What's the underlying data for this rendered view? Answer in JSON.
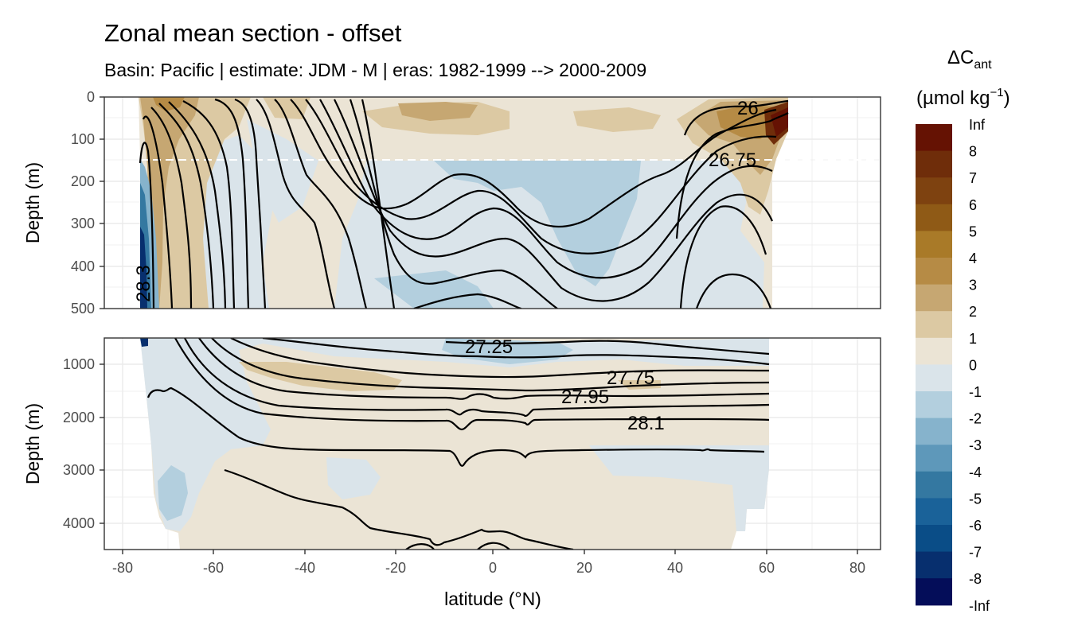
{
  "title": "Zonal mean section - offset",
  "subtitle": "Basin: Pacific | estimate: JDM - M | eras: 1982-1999 --> 2000-2009",
  "chart_data": {
    "type": "contour",
    "xlabel": "latitude (°N)",
    "x_ticks": [
      -80,
      -60,
      -40,
      -20,
      0,
      20,
      40,
      60,
      80
    ],
    "xlim": [
      -85,
      85
    ],
    "panels": [
      {
        "name": "upper",
        "ylabel": "Depth (m)",
        "ylim": [
          0,
          500
        ],
        "y_ticks": [
          0,
          100,
          200,
          300,
          400,
          500
        ],
        "mixed_layer_line_depth": 150
      },
      {
        "name": "lower",
        "ylabel": "Depth (m)",
        "ylim": [
          500,
          4500
        ],
        "y_ticks": [
          1000,
          2000,
          3000,
          4000
        ]
      }
    ],
    "isopycnal_labels": [
      {
        "text": "26",
        "lat": 56,
        "depth": 25,
        "panel": "upper"
      },
      {
        "text": "26.75",
        "lat": 55,
        "depth": 150,
        "panel": "upper"
      },
      {
        "text": "28.3",
        "lat": -77,
        "depth": 420,
        "panel": "upper",
        "rotated": true
      },
      {
        "text": "27.25",
        "lat": -5,
        "depth": 700,
        "panel": "lower"
      },
      {
        "text": "27.75",
        "lat": 31,
        "depth": 1220,
        "panel": "lower"
      },
      {
        "text": "27.95",
        "lat": 21,
        "depth": 1560,
        "panel": "lower"
      },
      {
        "text": "28.1",
        "lat": 34,
        "depth": 2080,
        "panel": "lower"
      }
    ],
    "legend": {
      "title_main": "ΔC",
      "title_sub": "ant",
      "units_main": "(µmol kg",
      "units_sup": "−1",
      "units_close": ")",
      "breaks": [
        "Inf",
        "8",
        "7",
        "6",
        "5",
        "4",
        "3",
        "2",
        "1",
        "0",
        "-1",
        "-2",
        "-3",
        "-4",
        "-5",
        "-6",
        "-7",
        "-8",
        "-Inf"
      ],
      "colors": [
        "#651203",
        "#6f2d0a",
        "#7e4210",
        "#8f5a16",
        "#a97a28",
        "#b68b45",
        "#c6a772",
        "#dcc9a3",
        "#ebe4d5",
        "#dae4ea",
        "#b3cfde",
        "#86b3cc",
        "#5e98ba",
        "#3478a1",
        "#1a6299",
        "#0a4d87",
        "#072f6e",
        "#040d59"
      ]
    }
  }
}
